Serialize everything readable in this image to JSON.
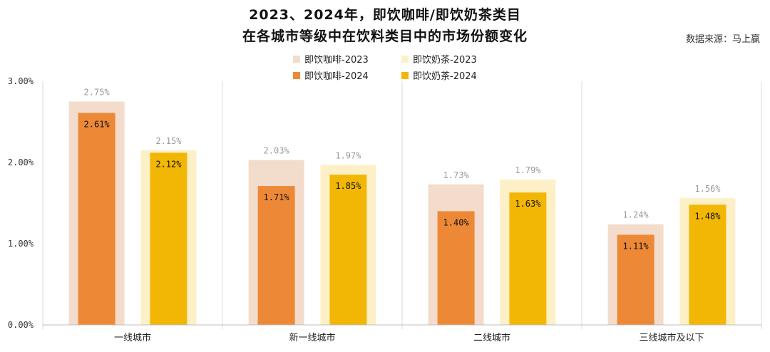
{
  "header": {
    "title_line1": "2023、2024年，即饮咖啡/即饮奶茶类目",
    "title_line2": "在各城市等级中在饮料类目中的市场份额变化",
    "source": "数据来源：马上赢"
  },
  "legend": [
    {
      "label": "即饮咖啡-2023",
      "color": "#F3DCCB"
    },
    {
      "label": "即饮奶茶-2023",
      "color": "#FDF0C7"
    },
    {
      "label": "即饮咖啡-2024",
      "color": "#ED8936"
    },
    {
      "label": "即饮奶茶-2024",
      "color": "#F2B705"
    }
  ],
  "chart_data": {
    "type": "bar",
    "title": "2023、2024年，即饮咖啡/即饮奶茶类目 在各城市等级中在饮料类目中的市场份额变化",
    "categories": [
      "一线城市",
      "新一线城市",
      "二线城市",
      "三线城市及以下"
    ],
    "series": [
      {
        "name": "即饮咖啡-2023",
        "values": [
          2.75,
          2.03,
          1.73,
          1.24
        ],
        "labels": [
          "2.75%",
          "2.03%",
          "1.73%",
          "1.24%"
        ],
        "color": "#F3DCCB"
      },
      {
        "name": "即饮奶茶-2023",
        "values": [
          2.15,
          1.97,
          1.79,
          1.56
        ],
        "labels": [
          "2.15%",
          "1.97%",
          "1.79%",
          "1.56%"
        ],
        "color": "#FDF0C7"
      },
      {
        "name": "即饮咖啡-2024",
        "values": [
          2.61,
          1.71,
          1.4,
          1.11
        ],
        "labels": [
          "2.61%",
          "1.71%",
          "1.40%",
          "1.11%"
        ],
        "color": "#ED8936"
      },
      {
        "name": "即饮奶茶-2024",
        "values": [
          2.12,
          1.85,
          1.63,
          1.48
        ],
        "labels": [
          "2.12%",
          "1.85%",
          "1.63%",
          "1.48%"
        ],
        "color": "#F2B705"
      }
    ],
    "ylim": [
      0,
      3
    ],
    "yticks": [
      0,
      1,
      2,
      3
    ],
    "ytick_labels": [
      "0.00%",
      "1.00%",
      "2.00%",
      "3.00%"
    ],
    "xlabel": "",
    "ylabel": "",
    "legend_position": "top-center"
  }
}
